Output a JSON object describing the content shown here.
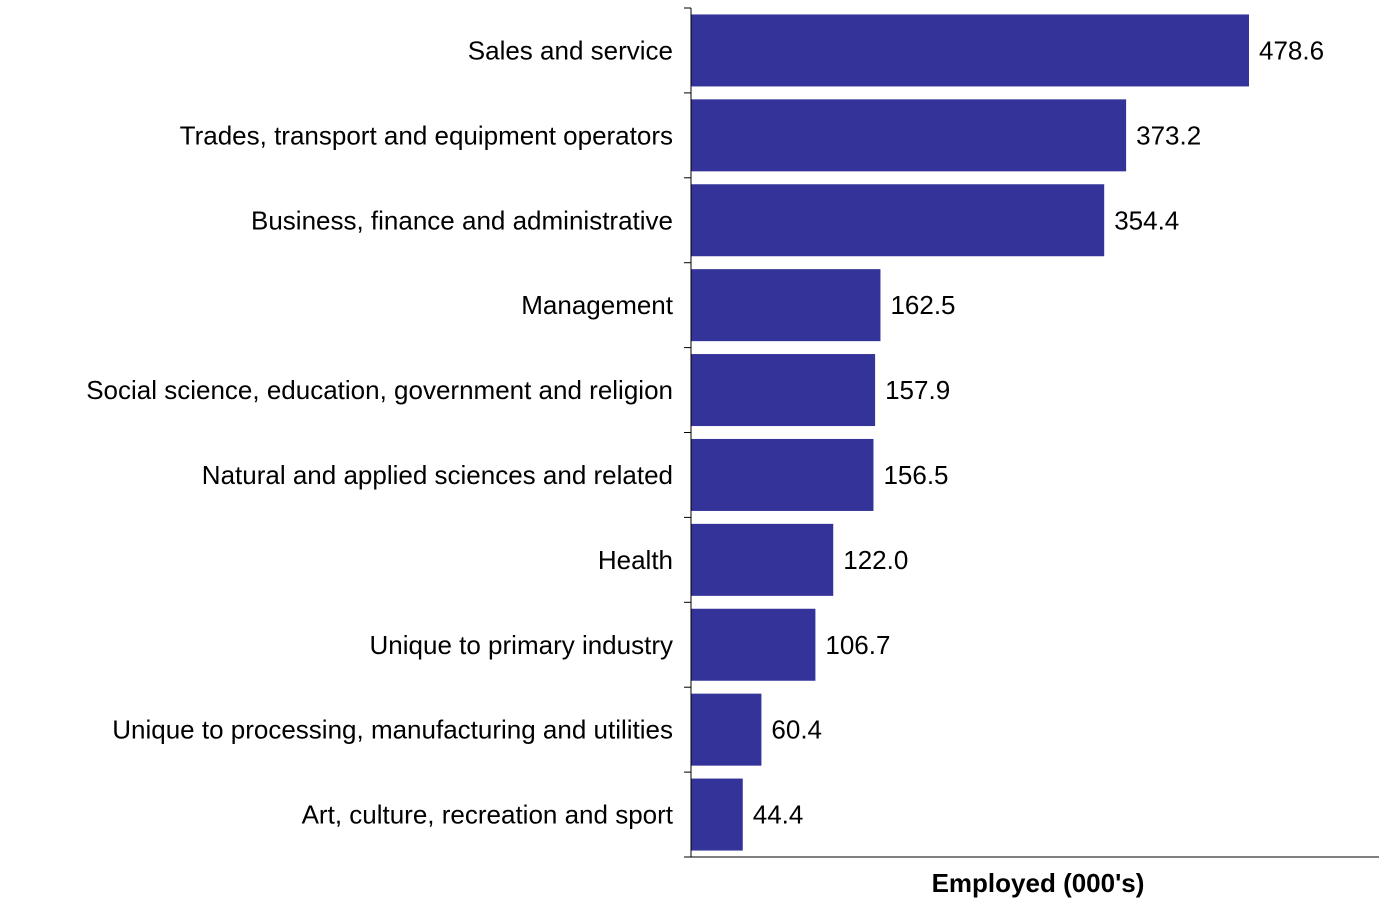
{
  "chart_data": {
    "type": "bar",
    "orientation": "horizontal",
    "categories": [
      "Sales and service",
      "Trades, transport and equipment operators",
      "Business, finance and administrative",
      "Management",
      "Social science, education, government and religion",
      "Natural and applied sciences and related",
      "Health",
      "Unique to primary industry",
      "Unique to processing, manufacturing and utilities",
      "Art, culture, recreation and sport"
    ],
    "values": [
      478.6,
      373.2,
      354.4,
      162.5,
      157.9,
      156.5,
      122.0,
      106.7,
      60.4,
      44.4
    ],
    "value_labels": [
      "478.6",
      "373.2",
      "354.4",
      "162.5",
      "157.9",
      "156.5",
      "122.0",
      "106.7",
      "60.4",
      "44.4"
    ],
    "xlabel": "Employed (000's)",
    "xlim": [
      0,
      590
    ],
    "bar_color": "#333399",
    "grid": false,
    "legend": "none"
  }
}
